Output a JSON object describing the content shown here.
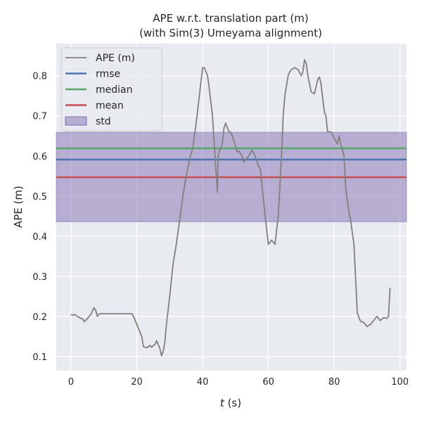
{
  "chart_data": {
    "type": "line",
    "title_line1": "APE w.r.t. translation part (m)",
    "title_line2": "(with Sim(3) Umeyama alignment)",
    "xlabel_var": "t",
    "xlabel_unit": " (s)",
    "ylabel": "APE (m)",
    "xlim": [
      -4.5,
      102
    ],
    "ylim": [
      0.065,
      0.88
    ],
    "xticks": [
      0,
      20,
      40,
      60,
      80,
      100
    ],
    "xtick_labels": [
      "0",
      "20",
      "40",
      "60",
      "80",
      "100"
    ],
    "yticks": [
      0.1,
      0.2,
      0.3,
      0.4,
      0.5,
      0.6,
      0.7,
      0.8
    ],
    "ytick_labels": [
      "0.1",
      "0.2",
      "0.3",
      "0.4",
      "0.5",
      "0.6",
      "0.7",
      "0.8"
    ],
    "grid": true,
    "legend_position": "top-left",
    "series": [
      {
        "name": "APE (m)",
        "color": "#808080",
        "x": [
          0,
          0.5,
          1,
          2,
          3,
          3.5,
          4,
          5,
          6,
          7,
          7.5,
          8,
          8.5,
          9,
          10,
          12,
          15,
          18,
          18.5,
          19,
          20,
          21,
          21.5,
          22,
          23,
          24,
          24.5,
          25,
          25.5,
          26,
          27,
          27.5,
          28,
          28.5,
          29,
          30,
          31,
          32,
          33,
          34,
          35,
          35.5,
          36,
          37,
          38,
          39,
          40,
          40.5,
          41,
          41.5,
          42,
          43,
          44,
          44.5,
          44.7,
          45,
          46,
          46.5,
          47,
          48,
          48.5,
          49,
          50,
          50.5,
          51,
          52,
          52.5,
          53,
          54,
          55,
          56,
          57,
          57.5,
          58,
          59,
          60,
          60.5,
          61,
          62,
          63,
          64,
          64.5,
          65,
          66,
          66.5,
          67,
          68,
          69,
          70,
          70.5,
          71,
          71.5,
          72,
          73,
          74,
          75,
          75.5,
          76,
          77,
          77.5,
          78,
          79,
          80,
          81,
          81.5,
          82,
          83,
          83.5,
          84,
          84.5,
          85,
          86,
          86.5,
          87,
          88,
          89,
          90,
          91,
          92,
          93,
          94,
          95,
          96,
          96.5,
          97
        ],
        "y": [
          0.205,
          0.203,
          0.205,
          0.2,
          0.195,
          0.195,
          0.187,
          0.195,
          0.205,
          0.222,
          0.215,
          0.2,
          0.206,
          0.207,
          0.207,
          0.207,
          0.207,
          0.207,
          0.207,
          0.2,
          0.18,
          0.16,
          0.15,
          0.125,
          0.122,
          0.128,
          0.123,
          0.128,
          0.13,
          0.14,
          0.12,
          0.102,
          0.113,
          0.135,
          0.18,
          0.25,
          0.33,
          0.38,
          0.44,
          0.5,
          0.55,
          0.57,
          0.59,
          0.62,
          0.68,
          0.75,
          0.82,
          0.82,
          0.81,
          0.8,
          0.77,
          0.7,
          0.57,
          0.51,
          0.6,
          0.61,
          0.63,
          0.67,
          0.682,
          0.66,
          0.66,
          0.65,
          0.625,
          0.61,
          0.612,
          0.6,
          0.585,
          0.59,
          0.6,
          0.615,
          0.6,
          0.575,
          0.57,
          0.53,
          0.45,
          0.38,
          0.385,
          0.39,
          0.38,
          0.45,
          0.6,
          0.7,
          0.75,
          0.8,
          0.81,
          0.815,
          0.82,
          0.815,
          0.8,
          0.81,
          0.84,
          0.83,
          0.8,
          0.76,
          0.755,
          0.79,
          0.797,
          0.78,
          0.71,
          0.7,
          0.66,
          0.66,
          0.645,
          0.63,
          0.65,
          0.63,
          0.6,
          0.52,
          0.49,
          0.46,
          0.44,
          0.38,
          0.3,
          0.21,
          0.188,
          0.185,
          0.175,
          0.18,
          0.19,
          0.2,
          0.19,
          0.197,
          0.195,
          0.2,
          0.272
        ]
      },
      {
        "name": "rmse",
        "color": "#4c72b0",
        "value": 0.591
      },
      {
        "name": "median",
        "color": "#55a868",
        "value": 0.619
      },
      {
        "name": "mean",
        "color": "#c44e52",
        "value": 0.547
      },
      {
        "name": "std",
        "color": "#8172b2",
        "band": [
          0.436,
          0.659
        ]
      }
    ]
  }
}
